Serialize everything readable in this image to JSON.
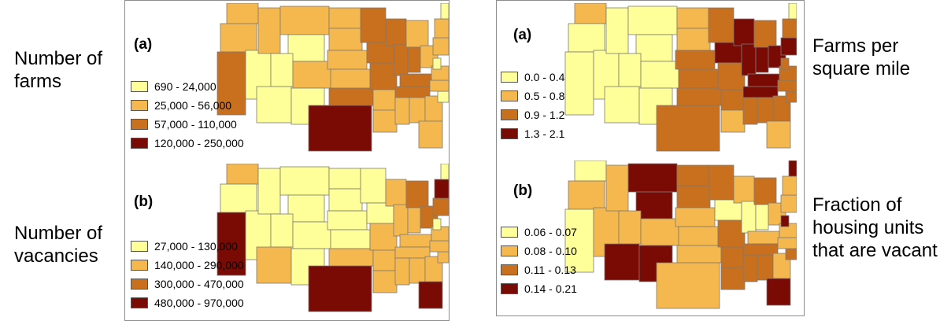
{
  "labels": {
    "farms": "Number of farms",
    "vacancies": "Number of vacancies",
    "farms_per_sq_mile": "Farms per square mile",
    "fraction_vacant": "Fraction of housing units that are vacant"
  },
  "colors": {
    "c1": "#ffff99",
    "c2": "#f5b84f",
    "c3": "#c9701f",
    "c4": "#7a0a04",
    "border": "#7a7a7a"
  },
  "maps": [
    {
      "tag": "(a)",
      "legend": [
        "690 - 24,000",
        "25,000 - 56,000",
        "57,000 - 110,000",
        "120,000 - 250,000"
      ]
    },
    {
      "tag": "(b)",
      "legend": [
        "27,000 - 130,000",
        "140,000 - 290,000",
        "300,000 - 470,000",
        "480,000 - 970,000"
      ]
    },
    {
      "tag": "(a)",
      "legend": [
        "0.0 - 0.4",
        "0.5 - 0.8",
        "0.9 - 1.2",
        "1.3 - 2.1"
      ]
    },
    {
      "tag": "(b)",
      "legend": [
        "0.06 - 0.07",
        "0.08 - 0.10",
        "0.11 - 0.13",
        "0.14 - 0.21"
      ]
    }
  ]
}
